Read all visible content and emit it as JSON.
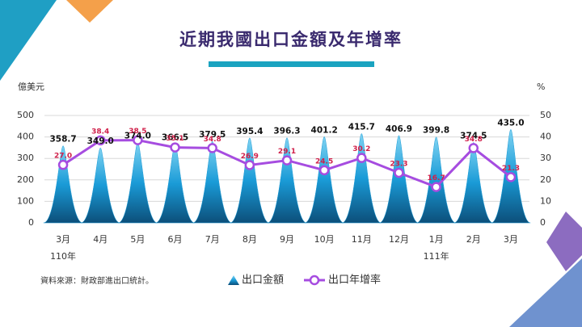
{
  "chart_data": {
    "type": "bar-line",
    "title": "近期我國出口金額及年增率",
    "ylabel": "億美元",
    "y2label": "%",
    "source": "資料來源：財政部進出口統計。",
    "categories": [
      "3月",
      "4月",
      "5月",
      "6月",
      "7月",
      "8月",
      "9月",
      "10月",
      "11月",
      "12月",
      "1月",
      "2月",
      "3月"
    ],
    "year_labels": [
      "110年",
      null,
      null,
      null,
      null,
      null,
      null,
      null,
      null,
      null,
      "111年",
      null,
      null
    ],
    "ylim": [
      0,
      500
    ],
    "yticks": [
      0,
      100,
      200,
      300,
      400,
      500
    ],
    "y2lim": [
      0,
      50
    ],
    "y2ticks": [
      0,
      10,
      20,
      30,
      40,
      50
    ],
    "grid": true,
    "series": [
      {
        "name": "出口金額",
        "type": "bar",
        "color": "#1a9bd7",
        "values": [
          358.7,
          349.0,
          374.0,
          366.5,
          379.5,
          395.4,
          396.3,
          401.2,
          415.7,
          406.9,
          399.8,
          374.5,
          435.0
        ],
        "value_labels": [
          "358.7",
          "349.0",
          "374.0",
          "366.5",
          "379.5",
          "395.4",
          "396.3",
          "401.2",
          "415.7",
          "406.9",
          "399.8",
          "374.5",
          "435.0"
        ]
      },
      {
        "name": "出口年增率",
        "type": "line",
        "axis": "y2",
        "color": "#a64ce0",
        "values": [
          27.0,
          38.4,
          38.5,
          35.1,
          34.8,
          26.9,
          29.1,
          24.5,
          30.2,
          23.3,
          16.7,
          34.8,
          21.3
        ],
        "value_labels": [
          "27.0",
          "38.4",
          "38.5",
          "35.1",
          "34.8",
          "26.9",
          "29.1",
          "24.5",
          "30.2",
          "23.3",
          "16.7",
          "34.8",
          "21.3"
        ]
      }
    ]
  }
}
